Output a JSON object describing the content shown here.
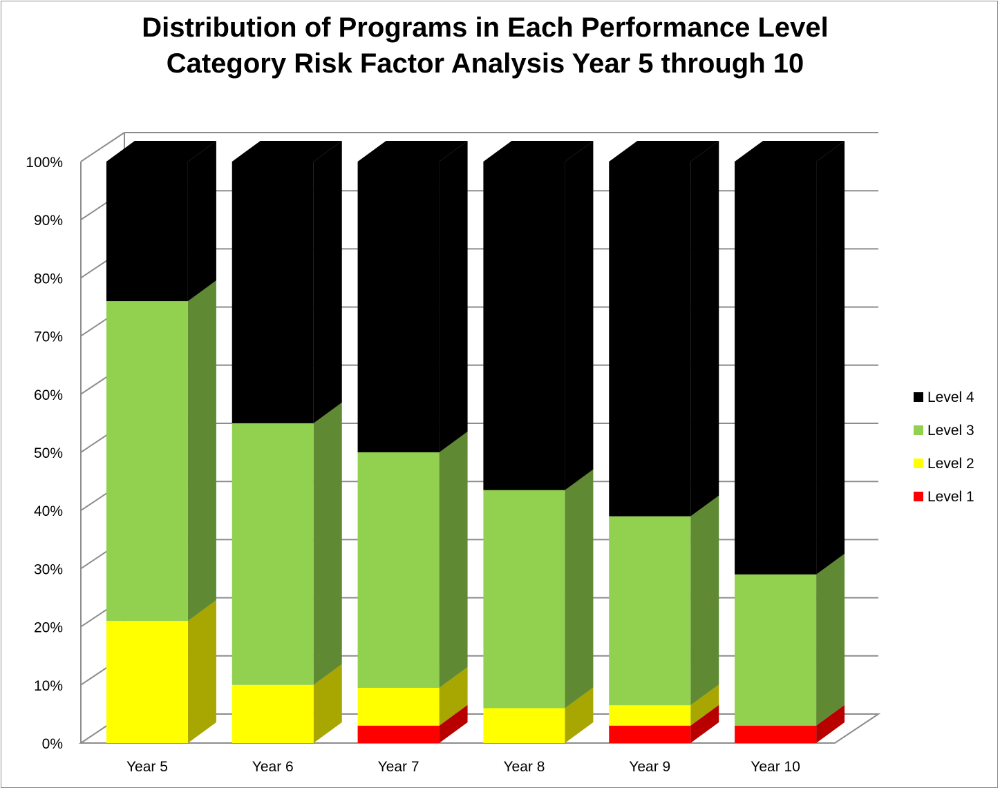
{
  "chart_data": {
    "type": "bar",
    "stacked": true,
    "percent_stacked": true,
    "three_d": true,
    "title": "Distribution of Programs in Each Performance Level\nCategory Risk Factor Analysis Year 5 through 10",
    "categories": [
      "Year 5",
      "Year 6",
      "Year 7",
      "Year 8",
      "Year 9",
      "Year 10"
    ],
    "series": [
      {
        "name": "Level 1",
        "color": "#ff0000",
        "side_color": "#b80000",
        "values": [
          0,
          0,
          3,
          0,
          3,
          3
        ]
      },
      {
        "name": "Level 2",
        "color": "#ffff00",
        "side_color": "#a8a600",
        "values": [
          21,
          10,
          6.5,
          6,
          3.5,
          0
        ]
      },
      {
        "name": "Level 3",
        "color": "#92d050",
        "side_color": "#5f8a33",
        "values": [
          55,
          45,
          40.5,
          37.5,
          32.5,
          26
        ]
      },
      {
        "name": "Level 4",
        "color": "#000000",
        "side_color": "#000000",
        "values": [
          24,
          45,
          50,
          56.5,
          61,
          71
        ]
      }
    ],
    "yticks": [
      "0%",
      "10%",
      "20%",
      "30%",
      "40%",
      "50%",
      "60%",
      "70%",
      "80%",
      "90%",
      "100%"
    ],
    "ylim": [
      0,
      100
    ],
    "grid": true,
    "legend": {
      "position": "right",
      "order": [
        "Level 4",
        "Level 3",
        "Level 2",
        "Level 1"
      ]
    }
  }
}
